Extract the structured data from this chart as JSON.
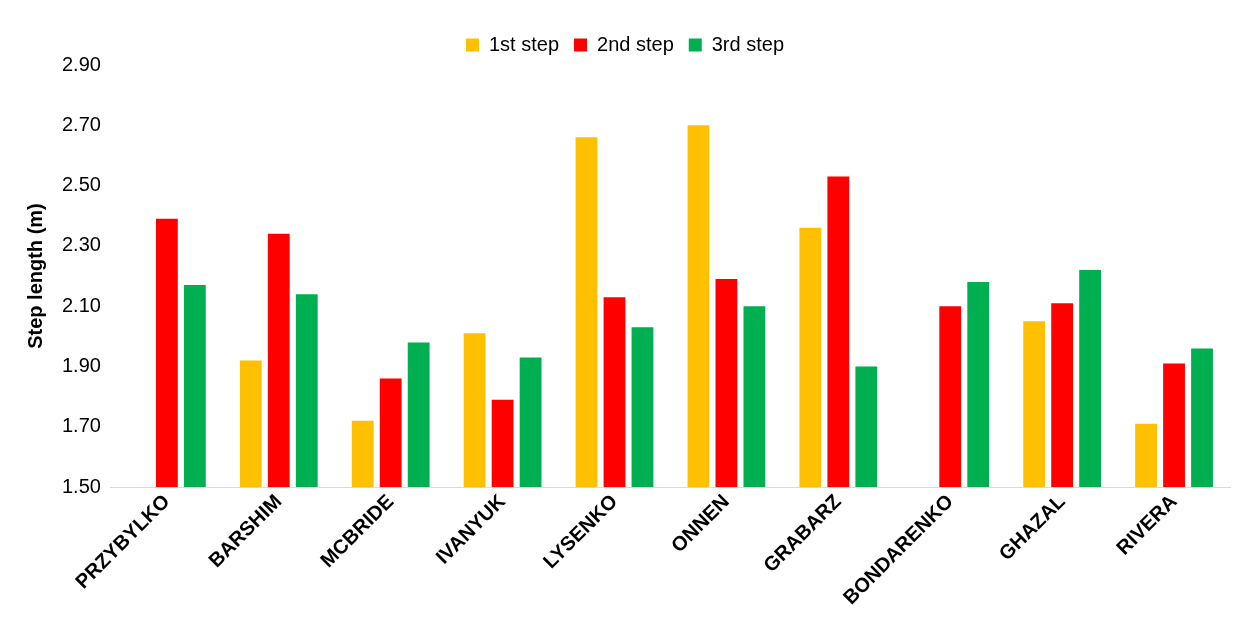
{
  "chart_data": {
    "type": "bar",
    "ylabel": "Step length (m)",
    "categories": [
      "PRZYBYLKO",
      "BARSHIM",
      "MCBRIDE",
      "IVANYUK",
      "LYSENKO",
      "ONNEN",
      "GRABARZ",
      "BONDARENKO",
      "GHAZAL",
      "RIVERA"
    ],
    "series": [
      {
        "name": "1st step",
        "color": "#ffc000",
        "values": [
          null,
          1.92,
          1.72,
          2.01,
          2.66,
          2.7,
          2.36,
          null,
          2.05,
          1.71
        ]
      },
      {
        "name": "2nd step",
        "color": "#ff0000",
        "values": [
          2.39,
          2.34,
          1.86,
          1.79,
          2.13,
          2.19,
          2.53,
          2.1,
          2.11,
          1.91
        ]
      },
      {
        "name": "3rd step",
        "color": "#00b050",
        "values": [
          2.17,
          2.14,
          1.98,
          1.93,
          2.03,
          2.1,
          1.9,
          2.18,
          2.22,
          1.96
        ]
      }
    ],
    "ylim": [
      1.5,
      2.9
    ],
    "yticks": [
      {
        "value": 1.5,
        "label": "1.50"
      },
      {
        "value": 1.7,
        "label": "1.70"
      },
      {
        "value": 1.9,
        "label": "1.90"
      },
      {
        "value": 2.1,
        "label": "2.10"
      },
      {
        "value": 2.3,
        "label": "2.30"
      },
      {
        "value": 2.5,
        "label": "2.50"
      },
      {
        "value": 2.7,
        "label": "2.70"
      },
      {
        "value": 2.9,
        "label": "2.90"
      }
    ],
    "grid": false,
    "legend": "top"
  }
}
